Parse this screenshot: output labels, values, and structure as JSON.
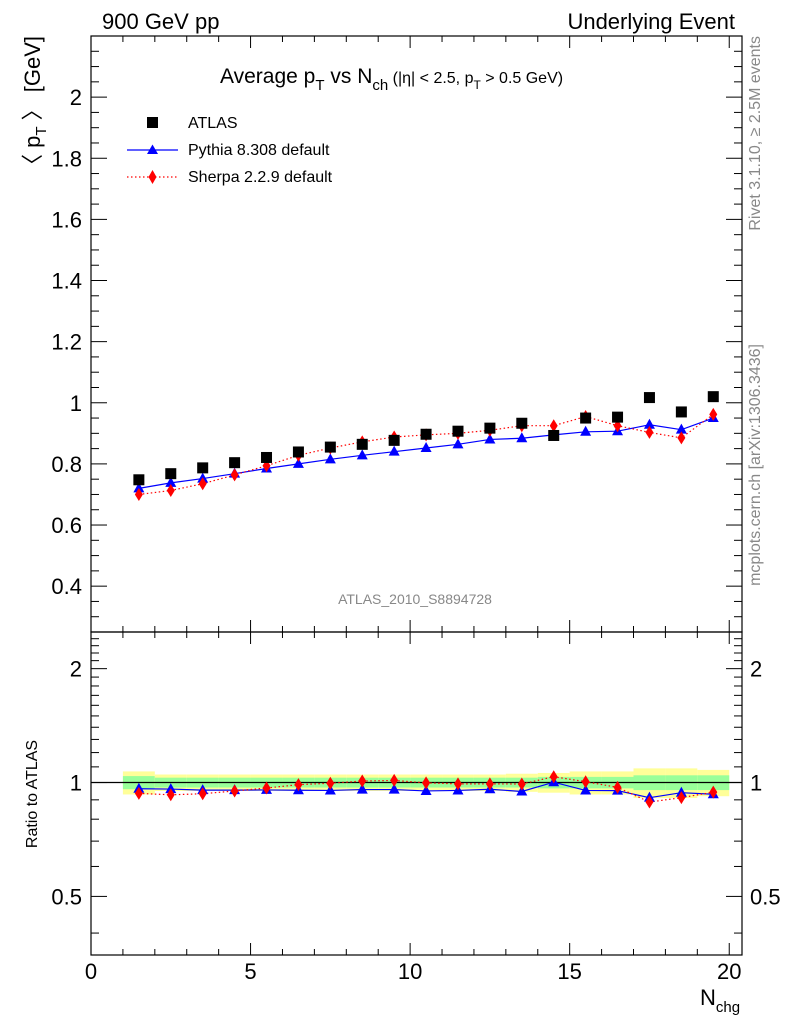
{
  "header": {
    "left": "900 GeV pp",
    "right": "Underlying Event"
  },
  "side_labels": {
    "rivet": "Rivet 3.1.10, ≥ 2.5M events",
    "mcplots": "mcplots.cern.ch [arXiv:1306.3436]"
  },
  "analysis_id": "ATLAS_2010_S8894728",
  "title": {
    "main_a": "Average p",
    "main_a_sub": "T",
    "main_b": " vs N",
    "main_b_sub": "ch",
    "cut_a": " (|η| < 2.5, p",
    "cut_sub": "T",
    "cut_b": " > 0.5 GeV)"
  },
  "ylabel": {
    "pre": "〈 p",
    "sub": "T",
    "post": " 〉 [GeV]"
  },
  "ratio_ylabel": "Ratio to ATLAS",
  "xlabel": {
    "main": "N",
    "sub": "chg"
  },
  "colors": {
    "atlas": "#000000",
    "pythia": "#0000ff",
    "sherpa": "#ff0000",
    "band_inner": "#99ff99",
    "band_outer": "#ffff99"
  },
  "chart_data": [
    {
      "type": "scatter",
      "panel": "main",
      "xlim": [
        0,
        20.4
      ],
      "ylim": [
        0.25,
        2.2
      ],
      "yticks": [
        0.4,
        0.6,
        0.8,
        1.0,
        1.2,
        1.4,
        1.6,
        1.8,
        2.0
      ],
      "ytick_labels": [
        "0.4",
        "0.6",
        "0.8",
        "1",
        "1.2",
        "1.4",
        "1.6",
        "1.8",
        "2"
      ],
      "legend_position": "top-left",
      "x": [
        1.5,
        2.5,
        3.5,
        4.5,
        5.5,
        6.5,
        7.5,
        8.5,
        9.5,
        10.5,
        11.5,
        12.5,
        13.5,
        14.5,
        15.5,
        16.5,
        17.5,
        18.5,
        19.5
      ],
      "series": [
        {
          "name": "ATLAS",
          "marker": "square",
          "values": [
            0.748,
            0.768,
            0.787,
            0.804,
            0.821,
            0.839,
            0.855,
            0.864,
            0.877,
            0.897,
            0.907,
            0.917,
            0.933,
            0.893,
            0.95,
            0.953,
            1.017,
            0.97,
            1.02
          ]
        },
        {
          "name": "Pythia 8.308 default",
          "marker": "triangle",
          "line": "solid",
          "values": [
            0.72,
            0.738,
            0.752,
            0.768,
            0.785,
            0.8,
            0.815,
            0.828,
            0.84,
            0.852,
            0.864,
            0.88,
            0.884,
            0.895,
            0.905,
            0.907,
            0.928,
            0.912,
            0.95
          ]
        },
        {
          "name": "Sherpa 2.2.9 default",
          "marker": "diamond",
          "line": "dotted",
          "values": [
            0.7,
            0.713,
            0.735,
            0.764,
            0.794,
            0.828,
            0.852,
            0.872,
            0.888,
            0.895,
            0.9,
            0.91,
            0.925,
            0.925,
            0.955,
            0.925,
            0.903,
            0.885,
            0.962
          ]
        }
      ]
    },
    {
      "type": "line",
      "panel": "ratio",
      "xlim": [
        0,
        20.4
      ],
      "ylim": [
        0.35,
        2.5
      ],
      "yscale": "log",
      "yticks": [
        0.5,
        1,
        2
      ],
      "ytick_labels": [
        "0.5",
        "1",
        "2"
      ],
      "xticks": [
        0,
        5,
        10,
        15,
        20
      ],
      "xtick_labels": [
        "0",
        "5",
        "10",
        "15",
        "20"
      ],
      "x": [
        1.5,
        2.5,
        3.5,
        4.5,
        5.5,
        6.5,
        7.5,
        8.5,
        9.5,
        10.5,
        11.5,
        12.5,
        13.5,
        14.5,
        15.5,
        16.5,
        17.5,
        18.5,
        19.5
      ],
      "bands": {
        "inner_half_width": [
          0.04,
          0.03,
          0.03,
          0.03,
          0.03,
          0.03,
          0.03,
          0.03,
          0.03,
          0.03,
          0.03,
          0.03,
          0.03,
          0.035,
          0.035,
          0.035,
          0.045,
          0.045,
          0.045
        ],
        "outer_half_width": [
          0.07,
          0.05,
          0.05,
          0.05,
          0.05,
          0.05,
          0.05,
          0.05,
          0.05,
          0.05,
          0.05,
          0.05,
          0.055,
          0.06,
          0.07,
          0.07,
          0.09,
          0.09,
          0.08
        ]
      },
      "series": [
        {
          "name": "Pythia 8.308 default",
          "marker": "triangle",
          "values": [
            0.963,
            0.961,
            0.955,
            0.955,
            0.956,
            0.954,
            0.953,
            0.958,
            0.958,
            0.95,
            0.953,
            0.96,
            0.947,
            1.002,
            0.953,
            0.952,
            0.912,
            0.94,
            0.931
          ]
        },
        {
          "name": "Sherpa 2.2.9 default",
          "marker": "diamond",
          "values": [
            0.936,
            0.928,
            0.934,
            0.95,
            0.967,
            0.987,
            0.996,
            1.009,
            1.013,
            0.998,
            0.992,
            0.992,
            0.991,
            1.036,
            1.005,
            0.971,
            0.888,
            0.912,
            0.943
          ]
        }
      ]
    }
  ]
}
